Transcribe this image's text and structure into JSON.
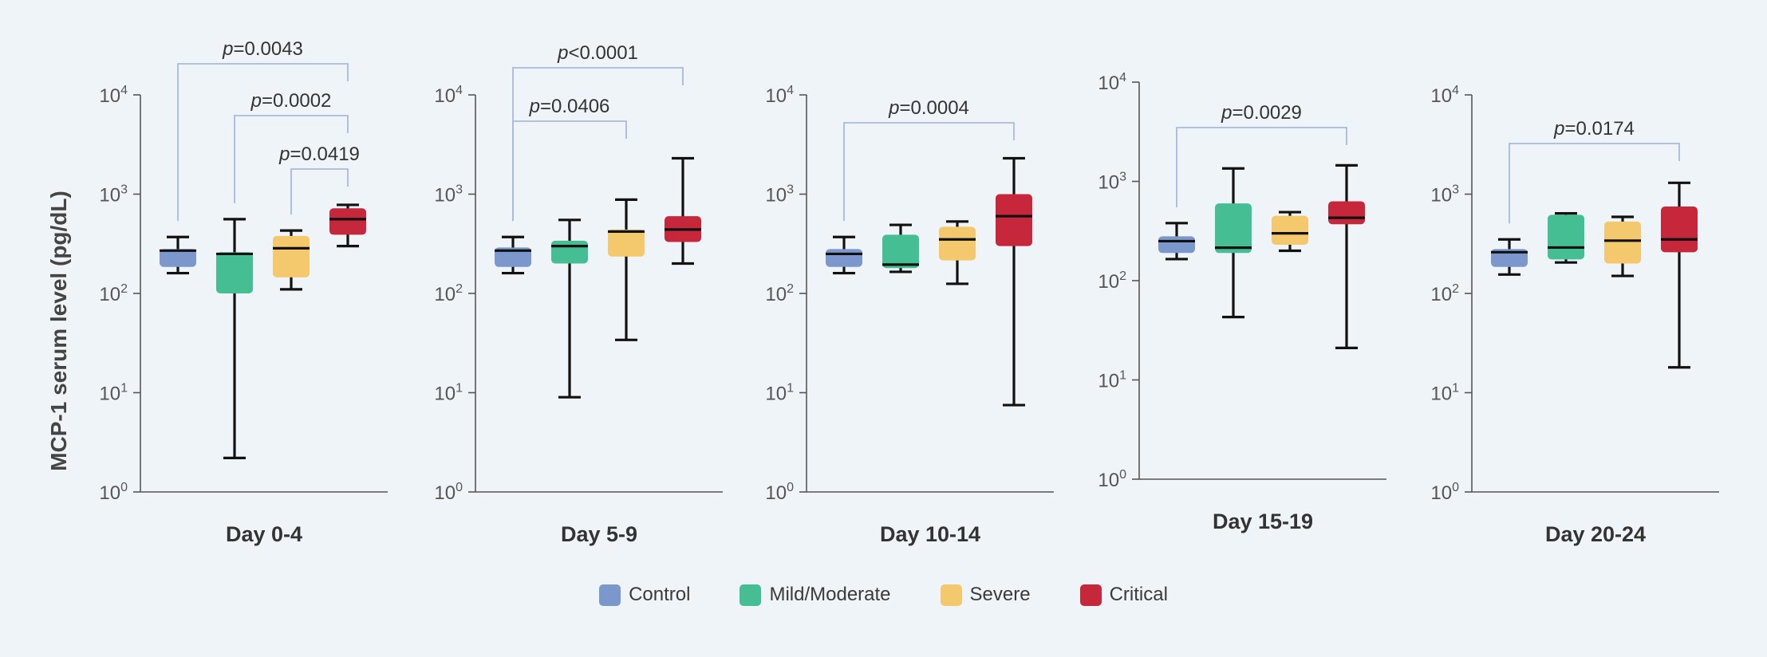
{
  "chart_data": {
    "type": "box",
    "ylabel": "MCP-1 serum level (pg/dL)",
    "yscale": "log",
    "ylim": [
      1,
      10000
    ],
    "y_ticks": [
      {
        "base": "10",
        "exp": "0"
      },
      {
        "base": "10",
        "exp": "1"
      },
      {
        "base": "10",
        "exp": "2"
      },
      {
        "base": "10",
        "exp": "3"
      },
      {
        "base": "10",
        "exp": "4"
      }
    ],
    "groups": [
      {
        "name": "Control",
        "color": "#7b97cb"
      },
      {
        "name": "Mild/Moderate",
        "color": "#44be92"
      },
      {
        "name": "Severe",
        "color": "#f4c86c"
      },
      {
        "name": "Critical",
        "color": "#c6273a"
      }
    ],
    "panels": [
      {
        "label": "Day 0-4",
        "boxes": [
          {
            "group": "Control",
            "min": 160,
            "q1": 185,
            "median": 270,
            "q3": 280,
            "max": 370
          },
          {
            "group": "Mild/Moderate",
            "min": 2.2,
            "q1": 100,
            "median": 250,
            "q3": 260,
            "max": 560
          },
          {
            "group": "Severe",
            "min": 110,
            "q1": 145,
            "median": 285,
            "q3": 380,
            "max": 430
          },
          {
            "group": "Critical",
            "min": 300,
            "q1": 390,
            "median": 560,
            "q3": 720,
            "max": 780
          }
        ],
        "comparisons": [
          {
            "label": "p=0.0043",
            "from": "Control",
            "to": "Critical"
          },
          {
            "label": "p=0.0002",
            "from": "Mild/Moderate",
            "to": "Critical"
          },
          {
            "label": "p=0.0419",
            "from": "Severe",
            "to": "Critical"
          }
        ]
      },
      {
        "label": "Day 5-9",
        "boxes": [
          {
            "group": "Control",
            "min": 160,
            "q1": 185,
            "median": 270,
            "q3": 290,
            "max": 370
          },
          {
            "group": "Mild/Moderate",
            "min": 9,
            "q1": 200,
            "median": 300,
            "q3": 340,
            "max": 550
          },
          {
            "group": "Severe",
            "min": 34,
            "q1": 235,
            "median": 420,
            "q3": 440,
            "max": 880
          },
          {
            "group": "Critical",
            "min": 200,
            "q1": 330,
            "median": 440,
            "q3": 600,
            "max": 2300
          }
        ],
        "comparisons": [
          {
            "label": "p<0.0001",
            "from": "Control",
            "to": "Critical"
          },
          {
            "label": "p=0.0406",
            "from": "Control",
            "to": "Severe"
          }
        ]
      },
      {
        "label": "Day 10-14",
        "boxes": [
          {
            "group": "Control",
            "min": 160,
            "q1": 185,
            "median": 250,
            "q3": 280,
            "max": 370
          },
          {
            "group": "Mild/Moderate",
            "min": 165,
            "q1": 180,
            "median": 195,
            "q3": 390,
            "max": 490
          },
          {
            "group": "Severe",
            "min": 125,
            "q1": 215,
            "median": 350,
            "q3": 470,
            "max": 530
          },
          {
            "group": "Critical",
            "min": 7.5,
            "q1": 300,
            "median": 600,
            "q3": 1000,
            "max": 2300
          }
        ],
        "comparisons": [
          {
            "label": "p=0.0004",
            "from": "Control",
            "to": "Critical"
          }
        ]
      },
      {
        "label": "Day 15-19",
        "boxes": [
          {
            "group": "Control",
            "min": 165,
            "q1": 190,
            "median": 250,
            "q3": 280,
            "max": 380
          },
          {
            "group": "Mild/Moderate",
            "min": 43,
            "q1": 190,
            "median": 215,
            "q3": 600,
            "max": 1350
          },
          {
            "group": "Severe",
            "min": 200,
            "q1": 230,
            "median": 300,
            "q3": 450,
            "max": 490
          },
          {
            "group": "Critical",
            "min": 21,
            "q1": 370,
            "median": 430,
            "q3": 630,
            "max": 1450
          }
        ],
        "comparisons": [
          {
            "label": "p=0.0029",
            "from": "Control",
            "to": "Critical"
          }
        ]
      },
      {
        "label": "Day 20-24",
        "boxes": [
          {
            "group": "Control",
            "min": 155,
            "q1": 185,
            "median": 260,
            "q3": 280,
            "max": 350
          },
          {
            "group": "Mild/Moderate",
            "min": 205,
            "q1": 220,
            "median": 290,
            "q3": 620,
            "max": 640
          },
          {
            "group": "Severe",
            "min": 150,
            "q1": 200,
            "median": 340,
            "q3": 530,
            "max": 590
          },
          {
            "group": "Critical",
            "min": 18,
            "q1": 260,
            "median": 350,
            "q3": 750,
            "max": 1300
          }
        ],
        "comparisons": [
          {
            "label": "p=0.0174",
            "from": "Control",
            "to": "Critical"
          }
        ]
      }
    ]
  }
}
